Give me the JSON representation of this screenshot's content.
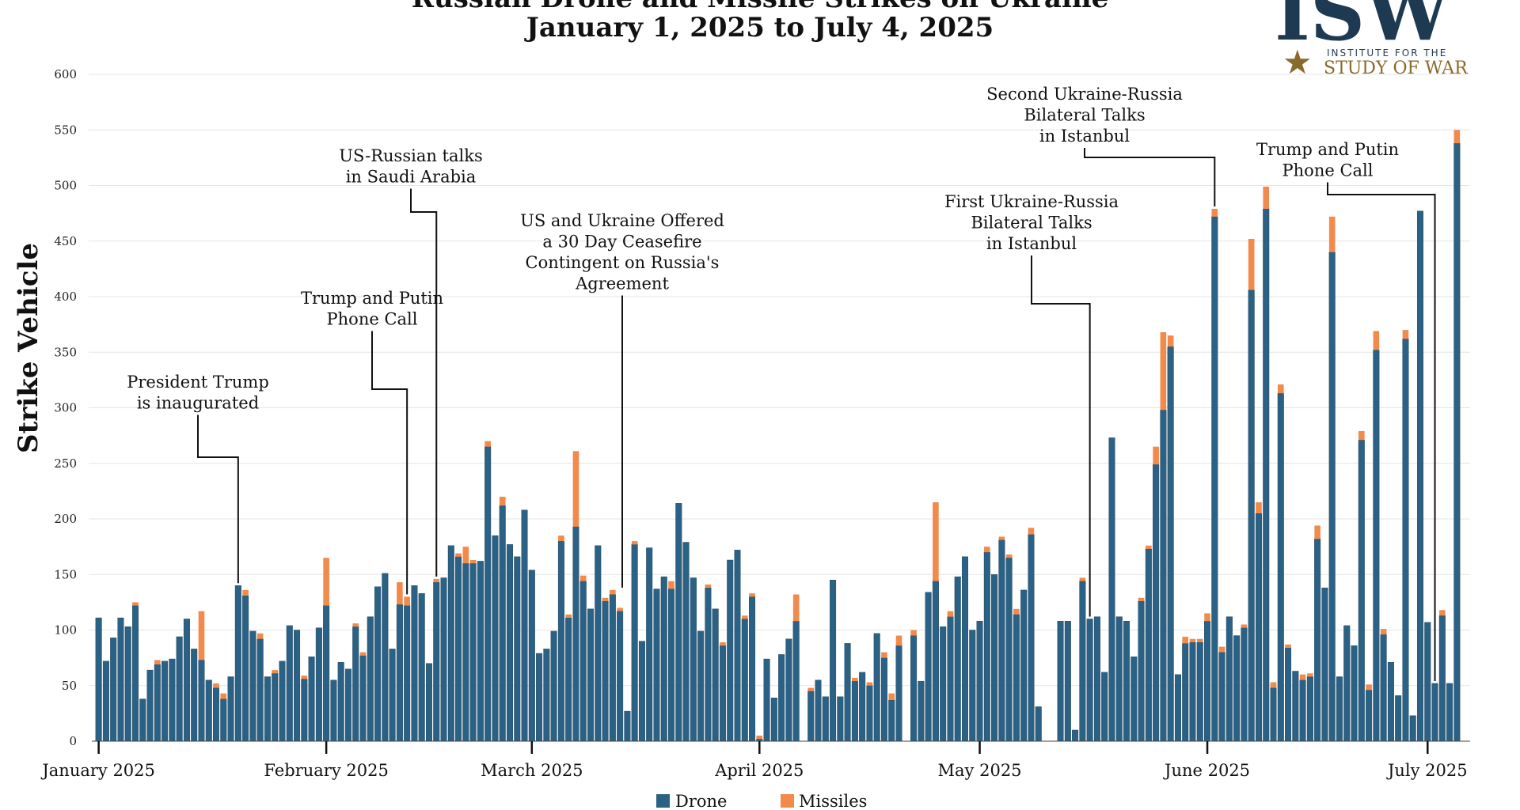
{
  "chart_data": {
    "type": "bar",
    "stacked": true,
    "title_line1": "Russian Drone and Missile Strikes on Ukraine",
    "title_line2": "January 1, 2025 to July 4, 2025",
    "ylabel": "Strike Vehicle",
    "ylim": [
      0,
      600
    ],
    "yticks": [
      0,
      50,
      100,
      150,
      200,
      250,
      300,
      350,
      400,
      450,
      500,
      550,
      600
    ],
    "grid": true,
    "x_range_days": [
      1,
      186
    ],
    "months": [
      {
        "label": "January 2025",
        "day": 1
      },
      {
        "label": "February 2025",
        "day": 32
      },
      {
        "label": "March 2025",
        "day": 60
      },
      {
        "label": "April 2025",
        "day": 91
      },
      {
        "label": "May 2025",
        "day": 121
      },
      {
        "label": "June 2025",
        "day": 152
      },
      {
        "label": "July 2025",
        "day": 182
      }
    ],
    "series": [
      {
        "name": "Drone",
        "color": "#2b6184",
        "values": [
          111,
          72,
          93,
          111,
          103,
          122,
          38,
          64,
          69,
          72,
          74,
          94,
          110,
          83,
          73,
          55,
          48,
          38,
          58,
          140,
          131,
          99,
          92,
          58,
          61,
          72,
          104,
          100,
          56,
          76,
          102,
          122,
          55,
          71,
          65,
          103,
          77,
          112,
          139,
          151,
          83,
          123,
          122,
          140,
          133,
          70,
          143,
          147,
          176,
          166,
          160,
          160,
          162,
          265,
          185,
          212,
          177,
          166,
          208,
          154,
          79,
          83,
          99,
          180,
          111,
          193,
          144,
          119,
          176,
          126,
          132,
          117,
          27,
          177,
          90,
          174,
          137,
          148,
          137,
          214,
          179,
          147,
          99,
          138,
          119,
          86,
          163,
          172,
          110,
          130,
          2,
          74,
          39,
          78,
          92,
          108,
          0,
          45,
          55,
          40,
          145,
          40,
          88,
          54,
          62,
          50,
          97,
          75,
          37,
          86,
          0,
          95,
          54,
          134,
          144,
          103,
          112,
          148,
          166,
          100,
          108,
          170,
          150,
          181,
          165,
          114,
          136,
          186,
          31,
          0,
          0,
          108,
          108,
          10,
          144,
          110,
          112,
          62,
          273,
          112,
          108,
          76,
          126,
          173,
          249,
          298,
          355,
          60,
          88,
          89,
          89,
          108,
          472,
          80,
          112,
          95,
          102,
          406,
          205,
          479,
          48,
          313,
          84,
          63,
          55,
          58,
          182,
          138,
          440,
          58,
          104,
          86,
          271,
          46,
          352,
          96,
          71,
          41,
          362,
          23,
          477,
          107,
          52,
          113,
          52,
          538
        ]
      },
      {
        "name": "Missiles",
        "color": "#f28a4c",
        "values": [
          0,
          0,
          0,
          0,
          0,
          3,
          0,
          0,
          4,
          0,
          0,
          0,
          0,
          0,
          44,
          0,
          4,
          5,
          0,
          0,
          5,
          0,
          5,
          0,
          3,
          0,
          0,
          0,
          3,
          0,
          0,
          43,
          0,
          0,
          0,
          3,
          3,
          0,
          0,
          0,
          0,
          20,
          8,
          0,
          0,
          0,
          3,
          0,
          0,
          3,
          15,
          3,
          0,
          5,
          0,
          8,
          0,
          0,
          0,
          0,
          0,
          0,
          0,
          5,
          3,
          68,
          5,
          0,
          0,
          3,
          4,
          3,
          0,
          3,
          0,
          0,
          0,
          0,
          7,
          0,
          0,
          0,
          0,
          3,
          0,
          3,
          0,
          0,
          3,
          3,
          3,
          0,
          0,
          0,
          0,
          24,
          0,
          3,
          0,
          0,
          0,
          0,
          0,
          3,
          0,
          3,
          0,
          5,
          6,
          9,
          0,
          5,
          0,
          0,
          71,
          0,
          5,
          0,
          0,
          0,
          0,
          5,
          0,
          3,
          3,
          5,
          0,
          6,
          0,
          0,
          0,
          0,
          0,
          0,
          3,
          0,
          0,
          0,
          0,
          0,
          0,
          0,
          3,
          3,
          16,
          70,
          10,
          0,
          6,
          3,
          3,
          7,
          7,
          5,
          0,
          0,
          3,
          46,
          10,
          20,
          5,
          8,
          3,
          0,
          5,
          3,
          12,
          0,
          32,
          0,
          0,
          0,
          8,
          5,
          17,
          5,
          0,
          0,
          8,
          0,
          0,
          0,
          0,
          5,
          0,
          12
        ]
      }
    ],
    "annotations": [
      {
        "lines": [
          "President Trump",
          "is inaugurated"
        ],
        "day": 20
      },
      {
        "lines": [
          "Trump and Putin",
          "Phone Call"
        ],
        "day": 43
      },
      {
        "lines": [
          "US-Russian talks",
          "in Saudi Arabia"
        ],
        "day": 47
      },
      {
        "lines": [
          "US and Ukraine Offered",
          "a 30 Day Ceasefire",
          "Contingent on Russia's",
          "Agreement"
        ],
        "day": 71
      },
      {
        "lines": [
          "First Ukraine-Russia",
          "Bilateral Talks",
          "in Istanbul"
        ],
        "day": 136
      },
      {
        "lines": [
          "Second Ukraine-Russia",
          "Bilateral Talks",
          "in Istanbul"
        ],
        "day": 153
      },
      {
        "lines": [
          "Trump and Putin",
          "Phone Call"
        ],
        "day": 183
      }
    ],
    "legend_position": "bottom-center"
  },
  "logo": {
    "letters": "ISW",
    "line1": "INSTITUTE FOR THE",
    "line2": "STUDY OF WAR",
    "navy": "#1e3a52",
    "gold": "#8a6a2a"
  }
}
